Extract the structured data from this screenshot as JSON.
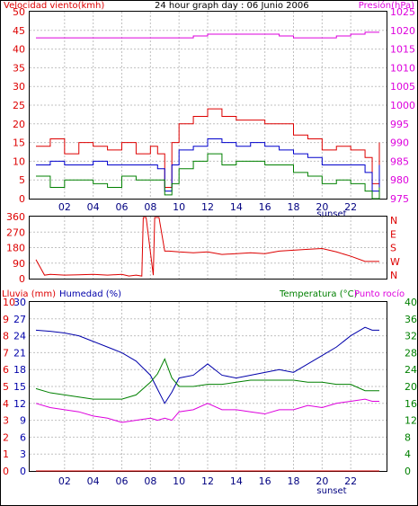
{
  "colors": {
    "wind_avg": "#0000cc",
    "wind_gust": "#dd0000",
    "wind_min": "#008000",
    "pressure": "#dd00dd",
    "direction": "#dd0000",
    "rain": "#dd0000",
    "humidity": "#0000aa",
    "temperature": "#008000",
    "dewpoint": "#dd00dd",
    "grid": "#c0c0c0",
    "frame": "#000000"
  },
  "chart_data": [
    {
      "type": "line",
      "title": "24 hour graph day : 06 Junio 2006",
      "left_label": "Velocidad viento(kmh)",
      "right_label": "Presión(hPa)",
      "xticks": [
        "02",
        "04",
        "06",
        "08",
        "10",
        "12",
        "14",
        "16",
        "18",
        "20",
        "22"
      ],
      "xtick_hours": [
        2,
        4,
        6,
        8,
        10,
        12,
        14,
        16,
        18,
        20,
        22
      ],
      "x_extra_label": "sunset",
      "x_extra_hour": 20,
      "xlim_hours": [
        0,
        24
      ],
      "y_left_ticks": [
        "0",
        "5",
        "10",
        "15",
        "20",
        "25",
        "30",
        "35",
        "40",
        "45",
        "50"
      ],
      "y_left_lim": [
        0,
        50
      ],
      "y_right_ticks": [
        "975",
        "980",
        "985",
        "990",
        "995",
        "1000",
        "1005",
        "1010",
        "1015",
        "1020",
        "1025"
      ],
      "y_right_lim": [
        975,
        1025
      ],
      "grid": true,
      "x": [
        0,
        1,
        2,
        3,
        4,
        5,
        6,
        7,
        8,
        8.5,
        9,
        9.5,
        10,
        11,
        12,
        13,
        14,
        15,
        16,
        17,
        18,
        19,
        20,
        21,
        22,
        23,
        23.5,
        24
      ],
      "series": [
        {
          "name": "Velocidad viento",
          "axis": "left",
          "key": "wind_gust",
          "values": [
            14,
            16,
            12,
            15,
            14,
            13,
            15,
            12,
            14,
            12,
            3,
            15,
            20,
            22,
            24,
            22,
            21,
            21,
            20,
            20,
            17,
            16,
            13,
            14,
            13,
            11,
            4,
            15
          ]
        },
        {
          "name": "",
          "axis": "left",
          "key": "wind_avg",
          "values": [
            9,
            10,
            9,
            9,
            10,
            9,
            9,
            9,
            9,
            8,
            2,
            9,
            13,
            14,
            16,
            15,
            14,
            15,
            14,
            13,
            12,
            11,
            9,
            9,
            9,
            7,
            2,
            9
          ]
        },
        {
          "name": "",
          "axis": "left",
          "key": "wind_min",
          "values": [
            6,
            3,
            5,
            5,
            4,
            3,
            6,
            5,
            5,
            5,
            1,
            4,
            8,
            10,
            12,
            9,
            10,
            10,
            9,
            9,
            7,
            6,
            4,
            5,
            4,
            2,
            0,
            3
          ]
        },
        {
          "name": "Presión",
          "axis": "right",
          "key": "pressure",
          "values": [
            1018,
            1018,
            1018,
            1018,
            1018,
            1018,
            1018,
            1018,
            1018,
            1018,
            1018,
            1018,
            1018,
            1018.5,
            1019,
            1019,
            1019,
            1019,
            1019,
            1018.5,
            1018,
            1018,
            1018,
            1018.5,
            1019,
            1019.5,
            1019.5,
            1019.5
          ]
        }
      ]
    },
    {
      "type": "line",
      "left_ticks": [
        "0",
        "90",
        "180",
        "270",
        "360"
      ],
      "right_labels": [
        "N",
        "W",
        "S",
        "E",
        "N"
      ],
      "ylim": [
        0,
        360
      ],
      "xlim_hours": [
        0,
        24
      ],
      "grid": true,
      "x": [
        0,
        0.3,
        0.6,
        1,
        2,
        3,
        4,
        5,
        6,
        6.5,
        7,
        7.4,
        7.5,
        7.7,
        8.2,
        8.3,
        8.6,
        9,
        9.3,
        10,
        11,
        12,
        13,
        14,
        15,
        16,
        17,
        18,
        19,
        20,
        21,
        22,
        23,
        24
      ],
      "series": [
        {
          "name": "Dirección",
          "key": "direction",
          "values": [
            110,
            65,
            20,
            25,
            20,
            22,
            25,
            20,
            25,
            15,
            20,
            15,
            355,
            355,
            20,
            355,
            355,
            160,
            160,
            155,
            150,
            155,
            140,
            145,
            150,
            145,
            160,
            165,
            170,
            175,
            155,
            130,
            100,
            100
          ]
        }
      ]
    },
    {
      "type": "line",
      "left_label": "Lluvia (mm)",
      "left_label2": "Humedad (%)",
      "right_label": "Temperatura (°C)",
      "right_label2": "Punto rocío",
      "xticks": [
        "02",
        "04",
        "06",
        "08",
        "10",
        "12",
        "14",
        "16",
        "18",
        "20",
        "22"
      ],
      "x_extra_label": "sunset",
      "xlim_hours": [
        0,
        24
      ],
      "rain_ticks": [
        "0",
        "1",
        "2",
        "3",
        "4",
        "5",
        "6",
        "7",
        "8",
        "9",
        "10"
      ],
      "rain_lim": [
        0,
        10
      ],
      "humidity_ticks": [
        "0",
        "3",
        "6",
        "9",
        "12",
        "15",
        "18",
        "21",
        "24",
        "27",
        "30"
      ],
      "humidity_lim": [
        0,
        30
      ],
      "temp_ticks": [
        "0",
        "4",
        "8",
        "12",
        "16",
        "20",
        "24",
        "28",
        "32",
        "36",
        "40"
      ],
      "temp_lim": [
        0,
        40
      ],
      "grid": true,
      "x": [
        0,
        1,
        2,
        3,
        4,
        5,
        6,
        7,
        8,
        8.5,
        9,
        9.5,
        10,
        11,
        12,
        13,
        14,
        15,
        16,
        17,
        18,
        19,
        20,
        21,
        22,
        23,
        23.5,
        24
      ],
      "series": [
        {
          "name": "Lluvia",
          "axis": "rain",
          "key": "rain",
          "values": [
            0,
            0,
            0,
            0,
            0,
            0,
            0,
            0,
            0,
            0,
            0,
            0,
            0,
            0,
            0,
            0,
            0,
            0,
            0,
            0,
            0,
            0,
            0,
            0,
            0,
            0,
            0,
            0
          ]
        },
        {
          "name": "Humedad",
          "axis": "humidity",
          "key": "humidity",
          "values": [
            25,
            24.8,
            24.5,
            24,
            23,
            22,
            21,
            19.5,
            17,
            14.5,
            12,
            14,
            16.5,
            17,
            19,
            17,
            16.5,
            17,
            17.5,
            18,
            17.5,
            19,
            20.5,
            22,
            24,
            25.5,
            25,
            25
          ]
        },
        {
          "name": "Temperatura",
          "axis": "temp",
          "key": "temperature",
          "values": [
            19.5,
            18.5,
            18,
            17.5,
            17,
            17,
            17,
            18,
            21,
            23,
            26.5,
            22,
            20,
            20,
            20.5,
            20.5,
            21,
            21.5,
            21.5,
            21.5,
            21.5,
            21,
            21,
            20.5,
            20.5,
            19,
            19,
            19
          ]
        },
        {
          "name": "Punto rocío",
          "axis": "temp",
          "key": "dewpoint",
          "values": [
            16,
            15,
            14.5,
            14,
            13,
            12.5,
            11.5,
            12,
            12.5,
            12,
            12.5,
            12,
            14,
            14.5,
            16,
            14.5,
            14.5,
            14,
            13.5,
            14.5,
            14.5,
            15.5,
            15,
            16,
            16.5,
            17,
            16.5,
            16.5
          ]
        }
      ]
    }
  ]
}
